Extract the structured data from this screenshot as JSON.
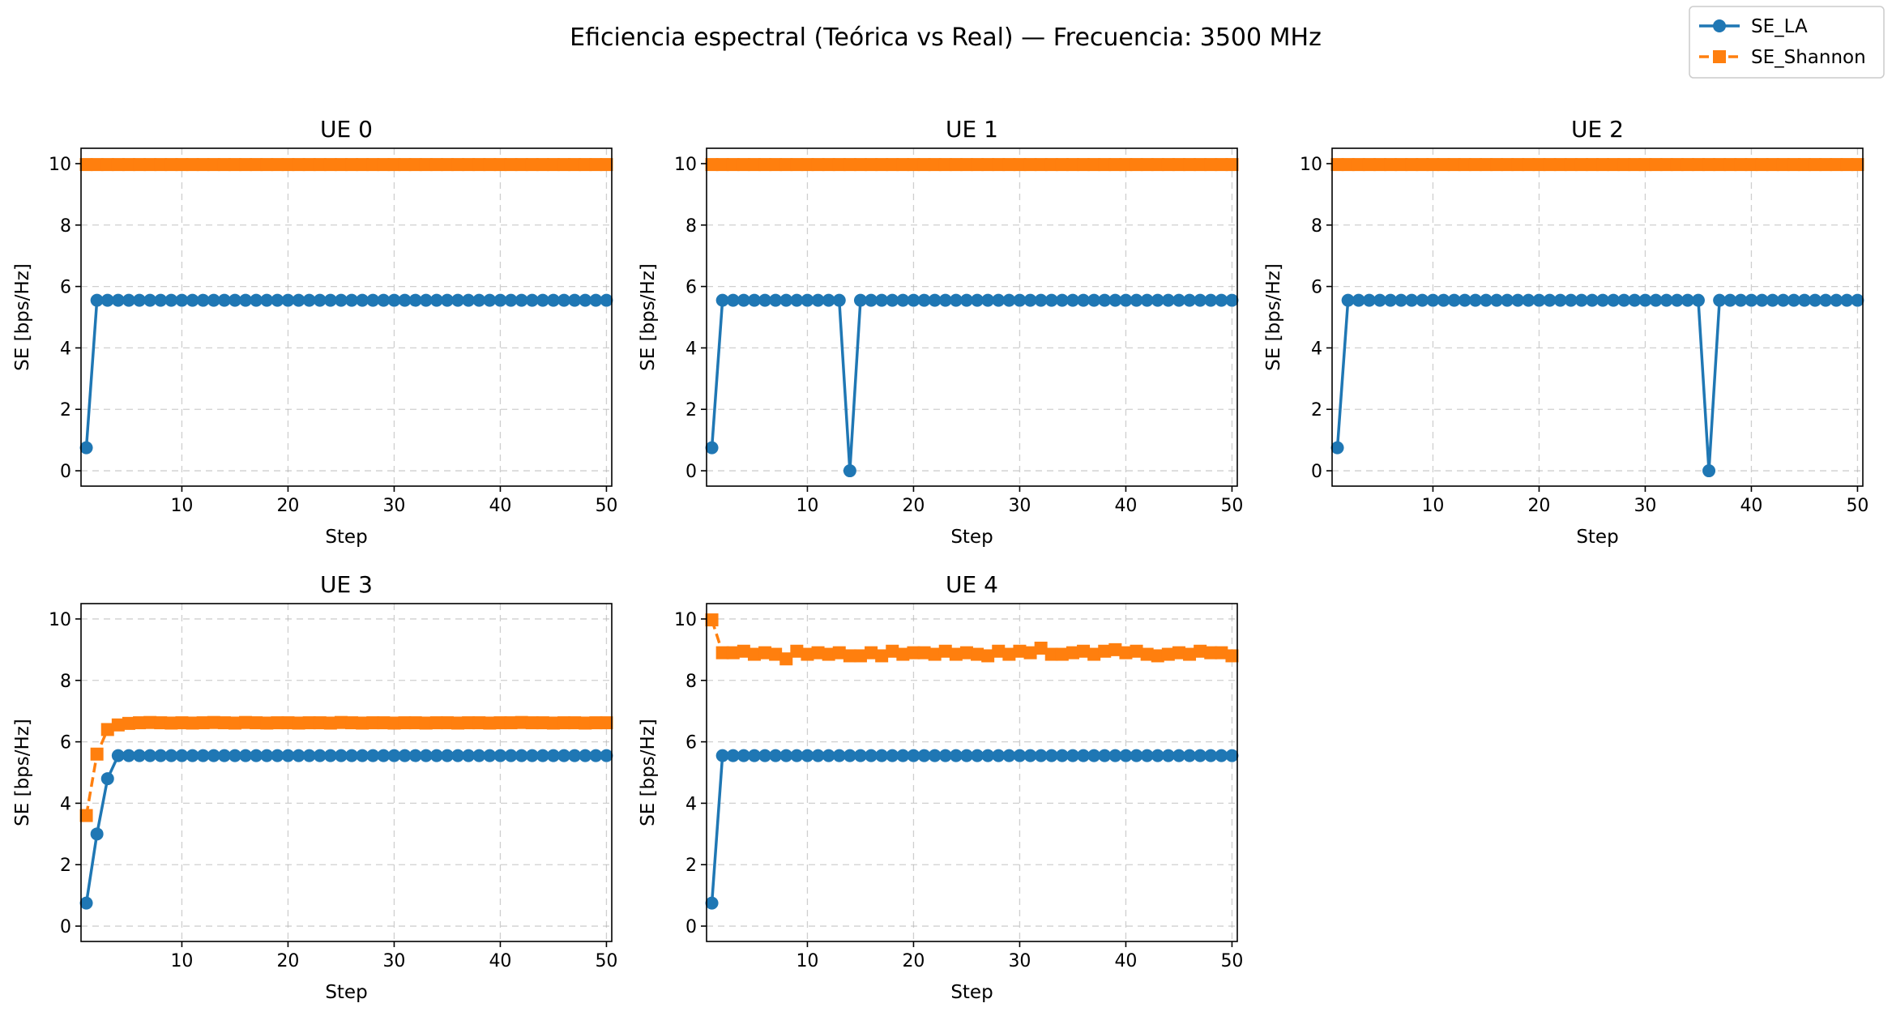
{
  "figure": {
    "title": "Eficiencia espectral (Teórica vs Real) — Frecuencia: 3500 MHz",
    "colors": {
      "se_la": "#1f77b4",
      "se_shannon": "#ff7f0e"
    }
  },
  "legend": {
    "placement": "top-right",
    "items": [
      {
        "label": "SE_LA",
        "marker": "circle",
        "line": "solid"
      },
      {
        "label": "SE_Shannon",
        "marker": "square",
        "line": "dashed"
      }
    ]
  },
  "chart_data": [
    {
      "type": "line",
      "title": "UE 0",
      "xlabel": "Step",
      "ylabel": "SE [bps/Hz]",
      "xlim": [
        0.5,
        50.5
      ],
      "ylim": [
        -0.5,
        10.5
      ],
      "xticks": [
        10,
        20,
        30,
        40,
        50
      ],
      "yticks": [
        0,
        2,
        4,
        6,
        8,
        10
      ],
      "grid": true,
      "x": [
        1,
        2,
        3,
        4,
        5,
        6,
        7,
        8,
        9,
        10,
        11,
        12,
        13,
        14,
        15,
        16,
        17,
        18,
        19,
        20,
        21,
        22,
        23,
        24,
        25,
        26,
        27,
        28,
        29,
        30,
        31,
        32,
        33,
        34,
        35,
        36,
        37,
        38,
        39,
        40,
        41,
        42,
        43,
        44,
        45,
        46,
        47,
        48,
        49,
        50
      ],
      "series": [
        {
          "name": "SE_LA",
          "values": [
            0.75,
            5.55,
            5.55,
            5.55,
            5.55,
            5.55,
            5.55,
            5.55,
            5.55,
            5.55,
            5.55,
            5.55,
            5.55,
            5.55,
            5.55,
            5.55,
            5.55,
            5.55,
            5.55,
            5.55,
            5.55,
            5.55,
            5.55,
            5.55,
            5.55,
            5.55,
            5.55,
            5.55,
            5.55,
            5.55,
            5.55,
            5.55,
            5.55,
            5.55,
            5.55,
            5.55,
            5.55,
            5.55,
            5.55,
            5.55,
            5.55,
            5.55,
            5.55,
            5.55,
            5.55,
            5.55,
            5.55,
            5.55,
            5.55,
            5.55
          ]
        },
        {
          "name": "SE_Shannon",
          "values": [
            9.97,
            9.97,
            9.97,
            9.97,
            9.97,
            9.97,
            9.97,
            9.97,
            9.97,
            9.97,
            9.97,
            9.97,
            9.97,
            9.97,
            9.97,
            9.97,
            9.97,
            9.97,
            9.97,
            9.97,
            9.97,
            9.97,
            9.97,
            9.97,
            9.97,
            9.97,
            9.97,
            9.97,
            9.97,
            9.97,
            9.97,
            9.97,
            9.97,
            9.97,
            9.97,
            9.97,
            9.97,
            9.97,
            9.97,
            9.97,
            9.97,
            9.97,
            9.97,
            9.97,
            9.97,
            9.97,
            9.97,
            9.97,
            9.97,
            9.97
          ]
        }
      ]
    },
    {
      "type": "line",
      "title": "UE 1",
      "xlabel": "Step",
      "ylabel": "SE [bps/Hz]",
      "xlim": [
        0.5,
        50.5
      ],
      "ylim": [
        -0.5,
        10.5
      ],
      "xticks": [
        10,
        20,
        30,
        40,
        50
      ],
      "yticks": [
        0,
        2,
        4,
        6,
        8,
        10
      ],
      "grid": true,
      "x": [
        1,
        2,
        3,
        4,
        5,
        6,
        7,
        8,
        9,
        10,
        11,
        12,
        13,
        14,
        15,
        16,
        17,
        18,
        19,
        20,
        21,
        22,
        23,
        24,
        25,
        26,
        27,
        28,
        29,
        30,
        31,
        32,
        33,
        34,
        35,
        36,
        37,
        38,
        39,
        40,
        41,
        42,
        43,
        44,
        45,
        46,
        47,
        48,
        49,
        50
      ],
      "series": [
        {
          "name": "SE_LA",
          "values": [
            0.75,
            5.55,
            5.55,
            5.55,
            5.55,
            5.55,
            5.55,
            5.55,
            5.55,
            5.55,
            5.55,
            5.55,
            5.55,
            0.0,
            5.55,
            5.55,
            5.55,
            5.55,
            5.55,
            5.55,
            5.55,
            5.55,
            5.55,
            5.55,
            5.55,
            5.55,
            5.55,
            5.55,
            5.55,
            5.55,
            5.55,
            5.55,
            5.55,
            5.55,
            5.55,
            5.55,
            5.55,
            5.55,
            5.55,
            5.55,
            5.55,
            5.55,
            5.55,
            5.55,
            5.55,
            5.55,
            5.55,
            5.55,
            5.55,
            5.55
          ]
        },
        {
          "name": "SE_Shannon",
          "values": [
            9.97,
            9.97,
            9.97,
            9.97,
            9.97,
            9.97,
            9.97,
            9.97,
            9.97,
            9.97,
            9.97,
            9.97,
            9.97,
            9.97,
            9.97,
            9.97,
            9.97,
            9.97,
            9.97,
            9.97,
            9.97,
            9.97,
            9.97,
            9.97,
            9.97,
            9.97,
            9.97,
            9.97,
            9.97,
            9.97,
            9.97,
            9.97,
            9.97,
            9.97,
            9.97,
            9.97,
            9.97,
            9.97,
            9.97,
            9.97,
            9.97,
            9.97,
            9.97,
            9.97,
            9.97,
            9.97,
            9.97,
            9.97,
            9.97,
            9.97
          ]
        }
      ]
    },
    {
      "type": "line",
      "title": "UE 2",
      "xlabel": "Step",
      "ylabel": "SE [bps/Hz]",
      "xlim": [
        0.5,
        50.5
      ],
      "ylim": [
        -0.5,
        10.5
      ],
      "xticks": [
        10,
        20,
        30,
        40,
        50
      ],
      "yticks": [
        0,
        2,
        4,
        6,
        8,
        10
      ],
      "grid": true,
      "x": [
        1,
        2,
        3,
        4,
        5,
        6,
        7,
        8,
        9,
        10,
        11,
        12,
        13,
        14,
        15,
        16,
        17,
        18,
        19,
        20,
        21,
        22,
        23,
        24,
        25,
        26,
        27,
        28,
        29,
        30,
        31,
        32,
        33,
        34,
        35,
        36,
        37,
        38,
        39,
        40,
        41,
        42,
        43,
        44,
        45,
        46,
        47,
        48,
        49,
        50
      ],
      "series": [
        {
          "name": "SE_LA",
          "values": [
            0.75,
            5.55,
            5.55,
            5.55,
            5.55,
            5.55,
            5.55,
            5.55,
            5.55,
            5.55,
            5.55,
            5.55,
            5.55,
            5.55,
            5.55,
            5.55,
            5.55,
            5.55,
            5.55,
            5.55,
            5.55,
            5.55,
            5.55,
            5.55,
            5.55,
            5.55,
            5.55,
            5.55,
            5.55,
            5.55,
            5.55,
            5.55,
            5.55,
            5.55,
            5.55,
            0.0,
            5.55,
            5.55,
            5.55,
            5.55,
            5.55,
            5.55,
            5.55,
            5.55,
            5.55,
            5.55,
            5.55,
            5.55,
            5.55,
            5.55
          ]
        },
        {
          "name": "SE_Shannon",
          "values": [
            9.97,
            9.97,
            9.97,
            9.97,
            9.97,
            9.97,
            9.97,
            9.97,
            9.97,
            9.97,
            9.97,
            9.97,
            9.97,
            9.97,
            9.97,
            9.97,
            9.97,
            9.97,
            9.97,
            9.97,
            9.97,
            9.97,
            9.97,
            9.97,
            9.97,
            9.97,
            9.97,
            9.97,
            9.97,
            9.97,
            9.97,
            9.97,
            9.97,
            9.97,
            9.97,
            9.97,
            9.97,
            9.97,
            9.97,
            9.97,
            9.97,
            9.97,
            9.97,
            9.97,
            9.97,
            9.97,
            9.97,
            9.97,
            9.97,
            9.97
          ]
        }
      ]
    },
    {
      "type": "line",
      "title": "UE 3",
      "xlabel": "Step",
      "ylabel": "SE [bps/Hz]",
      "xlim": [
        0.5,
        50.5
      ],
      "ylim": [
        -0.5,
        10.5
      ],
      "xticks": [
        10,
        20,
        30,
        40,
        50
      ],
      "yticks": [
        0,
        2,
        4,
        6,
        8,
        10
      ],
      "grid": true,
      "x": [
        1,
        2,
        3,
        4,
        5,
        6,
        7,
        8,
        9,
        10,
        11,
        12,
        13,
        14,
        15,
        16,
        17,
        18,
        19,
        20,
        21,
        22,
        23,
        24,
        25,
        26,
        27,
        28,
        29,
        30,
        31,
        32,
        33,
        34,
        35,
        36,
        37,
        38,
        39,
        40,
        41,
        42,
        43,
        44,
        45,
        46,
        47,
        48,
        49,
        50
      ],
      "series": [
        {
          "name": "SE_LA",
          "values": [
            0.75,
            3.0,
            4.8,
            5.55,
            5.55,
            5.55,
            5.55,
            5.55,
            5.55,
            5.55,
            5.55,
            5.55,
            5.55,
            5.55,
            5.55,
            5.55,
            5.55,
            5.55,
            5.55,
            5.55,
            5.55,
            5.55,
            5.55,
            5.55,
            5.55,
            5.55,
            5.55,
            5.55,
            5.55,
            5.55,
            5.55,
            5.55,
            5.55,
            5.55,
            5.55,
            5.55,
            5.55,
            5.55,
            5.55,
            5.55,
            5.55,
            5.55,
            5.55,
            5.55,
            5.55,
            5.55,
            5.55,
            5.55,
            5.55,
            5.55
          ]
        },
        {
          "name": "SE_Shannon",
          "values": [
            3.6,
            5.6,
            6.4,
            6.55,
            6.6,
            6.62,
            6.63,
            6.62,
            6.61,
            6.62,
            6.61,
            6.62,
            6.63,
            6.62,
            6.61,
            6.63,
            6.62,
            6.61,
            6.62,
            6.62,
            6.61,
            6.62,
            6.62,
            6.61,
            6.63,
            6.62,
            6.61,
            6.62,
            6.62,
            6.61,
            6.62,
            6.62,
            6.61,
            6.62,
            6.62,
            6.61,
            6.62,
            6.62,
            6.61,
            6.62,
            6.62,
            6.63,
            6.62,
            6.62,
            6.61,
            6.62,
            6.62,
            6.61,
            6.62,
            6.62
          ]
        }
      ]
    },
    {
      "type": "line",
      "title": "UE 4",
      "xlabel": "Step",
      "ylabel": "SE [bps/Hz]",
      "xlim": [
        0.5,
        50.5
      ],
      "ylim": [
        -0.5,
        10.5
      ],
      "xticks": [
        10,
        20,
        30,
        40,
        50
      ],
      "yticks": [
        0,
        2,
        4,
        6,
        8,
        10
      ],
      "grid": true,
      "x": [
        1,
        2,
        3,
        4,
        5,
        6,
        7,
        8,
        9,
        10,
        11,
        12,
        13,
        14,
        15,
        16,
        17,
        18,
        19,
        20,
        21,
        22,
        23,
        24,
        25,
        26,
        27,
        28,
        29,
        30,
        31,
        32,
        33,
        34,
        35,
        36,
        37,
        38,
        39,
        40,
        41,
        42,
        43,
        44,
        45,
        46,
        47,
        48,
        49,
        50
      ],
      "series": [
        {
          "name": "SE_LA",
          "values": [
            0.75,
            5.55,
            5.55,
            5.55,
            5.55,
            5.55,
            5.55,
            5.55,
            5.55,
            5.55,
            5.55,
            5.55,
            5.55,
            5.55,
            5.55,
            5.55,
            5.55,
            5.55,
            5.55,
            5.55,
            5.55,
            5.55,
            5.55,
            5.55,
            5.55,
            5.55,
            5.55,
            5.55,
            5.55,
            5.55,
            5.55,
            5.55,
            5.55,
            5.55,
            5.55,
            5.55,
            5.55,
            5.55,
            5.55,
            5.55,
            5.55,
            5.55,
            5.55,
            5.55,
            5.55,
            5.55,
            5.55,
            5.55,
            5.55,
            5.55
          ]
        },
        {
          "name": "SE_Shannon",
          "values": [
            9.97,
            8.9,
            8.9,
            8.95,
            8.85,
            8.9,
            8.85,
            8.7,
            8.95,
            8.85,
            8.9,
            8.85,
            8.9,
            8.8,
            8.8,
            8.9,
            8.8,
            8.95,
            8.85,
            8.9,
            8.9,
            8.85,
            8.95,
            8.85,
            8.9,
            8.85,
            8.8,
            8.95,
            8.85,
            8.95,
            8.9,
            9.05,
            8.85,
            8.85,
            8.9,
            8.95,
            8.85,
            8.95,
            9.0,
            8.9,
            8.95,
            8.85,
            8.8,
            8.85,
            8.9,
            8.85,
            8.95,
            8.9,
            8.9,
            8.8
          ]
        }
      ]
    }
  ]
}
